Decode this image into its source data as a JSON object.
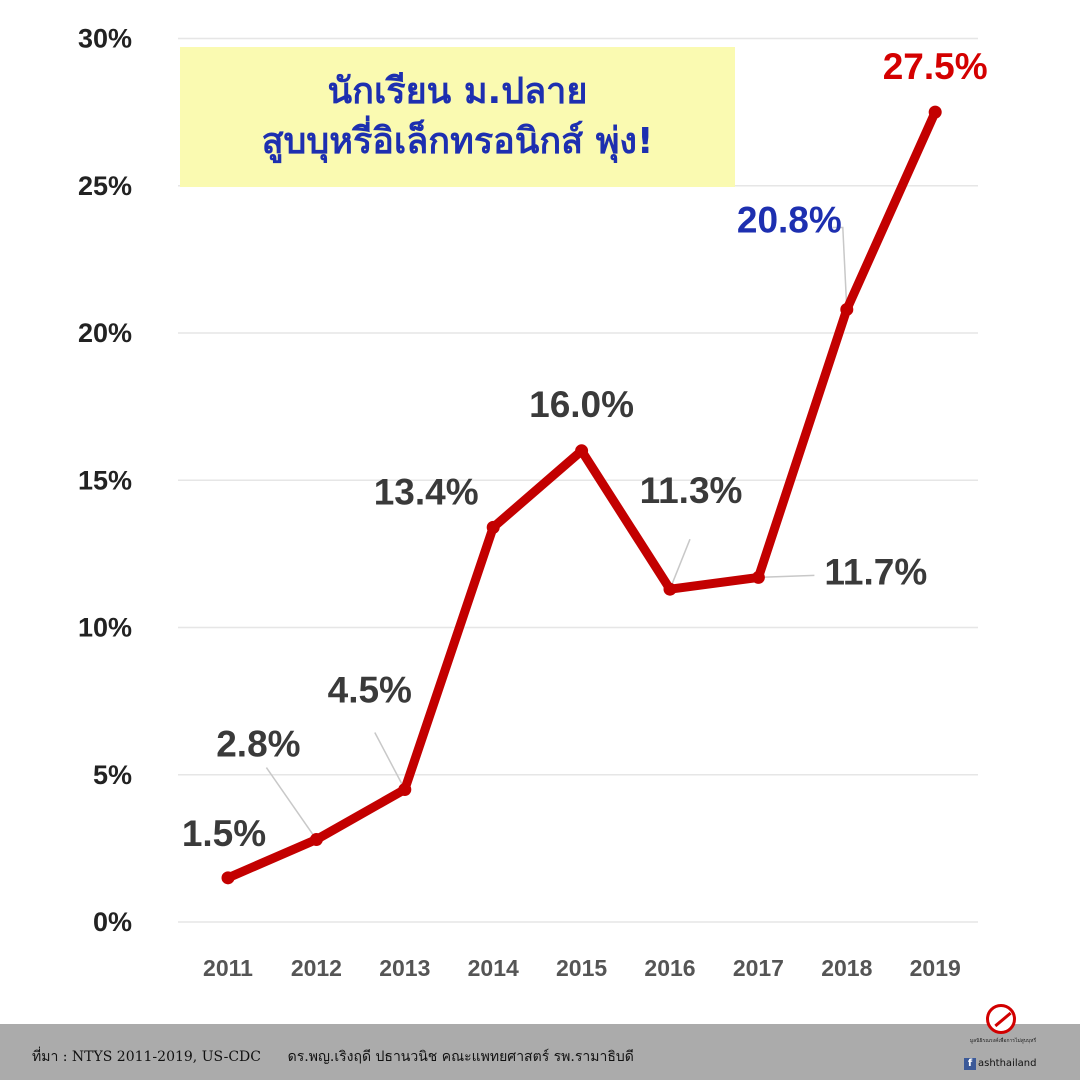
{
  "title": {
    "line1": "นักเรียน ม.ปลาย",
    "line2": "สูบบุหรี่อิเล็กทรอนิกส์ พุ่ง!"
  },
  "footer": {
    "source": "ที่มา : NTYS 2011-2019, US-CDC      ดร.พญ.เริงฤดี ปธานวนิช คณะแพทยศาสตร์ รพ.รามาธิบดี",
    "logo_tagline": "มูลนิธิรณรงค์เพื่อการไม่สูบบุหรี่",
    "logo_handle": "ashthailand",
    "logo_icon": "no-smoking-icon",
    "social_icon": "facebook-icon"
  },
  "colors": {
    "line": "#c30000",
    "label_default": "#3a3a3a",
    "label_2018": "#1d2fb0",
    "label_2019": "#d40000",
    "title_bg": "#fafab1",
    "title_text": "#1d2fb0",
    "grid": "#e6e6e6",
    "footer_bg": "#ababab"
  },
  "chart_data": {
    "type": "line",
    "categories": [
      "2011",
      "2012",
      "2013",
      "2014",
      "2015",
      "2016",
      "2017",
      "2018",
      "2019"
    ],
    "values": [
      1.5,
      2.8,
      4.5,
      13.4,
      16.0,
      11.3,
      11.7,
      20.8,
      27.5
    ],
    "data_labels": [
      "1.5%",
      "2.8%",
      "4.5%",
      "13.4%",
      "16.0%",
      "11.3%",
      "11.7%",
      "20.8%",
      "27.5%"
    ],
    "y_ticks": [
      "0%",
      "5%",
      "10%",
      "15%",
      "20%",
      "25%",
      "30%"
    ],
    "ylim": [
      0,
      30
    ],
    "grid": true,
    "legend": false
  }
}
